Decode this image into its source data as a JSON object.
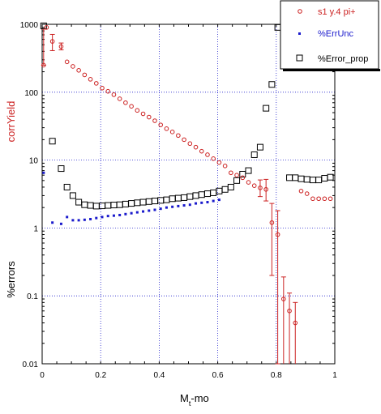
{
  "chart_data": {
    "type": "scatter",
    "title": "",
    "xlabel": "M_t-mo",
    "xlabel_main": "M",
    "xlabel_sub": "t",
    "xlabel_tail": "-mo",
    "ylabel_upper": "corrYield",
    "ylabel_lower": "%errors",
    "xlim": [
      0,
      1
    ],
    "ylim": [
      0.01,
      1000
    ],
    "yscale": "log",
    "grid": true,
    "legend_position": "top-right",
    "x_ticks": [
      "0",
      "0.2",
      "0.4",
      "0.6",
      "0.8",
      "1"
    ],
    "y_ticks": [
      "0.01",
      "0.1",
      "1",
      "10",
      "100",
      "1000"
    ],
    "x_tick_values": [
      0,
      0.2,
      0.4,
      0.6,
      0.8,
      1
    ],
    "y_tick_values": [
      0.01,
      0.1,
      1,
      10,
      100,
      1000
    ],
    "colors": {
      "yield": "#cc2222",
      "errunc": "#1a1acc",
      "errprop": "#000000",
      "grid": "#2222cc",
      "ylabel_upper": "#cc2222"
    },
    "series": [
      {
        "name": "s1 y.4 pi+",
        "marker": "circle",
        "x": [
          0.005,
          0.015,
          0.035,
          0.065,
          0.085,
          0.105,
          0.125,
          0.145,
          0.165,
          0.185,
          0.205,
          0.225,
          0.245,
          0.265,
          0.285,
          0.305,
          0.325,
          0.345,
          0.365,
          0.385,
          0.405,
          0.425,
          0.445,
          0.465,
          0.485,
          0.505,
          0.525,
          0.545,
          0.565,
          0.585,
          0.605,
          0.625,
          0.645,
          0.665,
          0.685,
          0.705,
          0.725,
          0.745,
          0.765,
          0.785,
          0.805,
          0.825,
          0.845,
          0.865,
          0.885,
          0.905,
          0.925,
          0.945,
          0.965,
          0.985
        ],
        "y": [
          250,
          900,
          560,
          470,
          280,
          240,
          210,
          180,
          155,
          135,
          115,
          103,
          92,
          80,
          70,
          62,
          54,
          48,
          43,
          38,
          33,
          29,
          26,
          23,
          20,
          17.5,
          15.5,
          13.5,
          12,
          10.5,
          9.2,
          8.2,
          6.5,
          6,
          5.5,
          4.7,
          4.2,
          3.9,
          3.7,
          1.2,
          0.8,
          0.09,
          0.06,
          0.04,
          3.5,
          3.2,
          2.7,
          2.7,
          2.7,
          2.7
        ],
        "err_low": [
          0.5,
          0,
          150,
          50,
          0,
          0,
          0,
          0,
          0,
          0,
          0,
          0,
          0,
          0,
          0,
          0,
          0,
          0,
          0,
          0,
          0,
          0,
          0,
          0,
          0,
          0,
          0,
          0,
          0,
          0,
          0,
          0,
          0,
          0,
          0,
          0,
          0,
          1.0,
          1.2,
          1.0,
          0.79,
          0.09,
          0.06,
          0.04,
          0,
          0,
          0,
          0,
          0,
          0
        ],
        "err_high": [
          600,
          0,
          150,
          60,
          0,
          0,
          0,
          0,
          0,
          0,
          0,
          0,
          0,
          0,
          0,
          0,
          0,
          0,
          0,
          0,
          0,
          0,
          0,
          0,
          0,
          0,
          0,
          0,
          0,
          0,
          0,
          0,
          0,
          0,
          0,
          0,
          0,
          1.2,
          1.5,
          1.1,
          1.0,
          0.1,
          0.05,
          0.04,
          0,
          0,
          0,
          0,
          0,
          0
        ]
      },
      {
        "name": "%ErrUnc",
        "marker": "square-filled",
        "x": [
          0.005,
          0.035,
          0.065,
          0.085,
          0.105,
          0.125,
          0.145,
          0.165,
          0.185,
          0.205,
          0.225,
          0.245,
          0.265,
          0.285,
          0.305,
          0.325,
          0.345,
          0.365,
          0.385,
          0.405,
          0.425,
          0.445,
          0.465,
          0.485,
          0.505,
          0.525,
          0.545,
          0.565,
          0.585,
          0.605
        ],
        "y": [
          6.5,
          1.2,
          1.15,
          1.45,
          1.3,
          1.3,
          1.32,
          1.35,
          1.4,
          1.45,
          1.5,
          1.52,
          1.55,
          1.6,
          1.65,
          1.7,
          1.75,
          1.8,
          1.85,
          1.92,
          2.0,
          2.05,
          2.1,
          2.15,
          2.2,
          2.3,
          2.35,
          2.4,
          2.5,
          2.6
        ]
      },
      {
        "name": "%Error_prop",
        "marker": "square-open",
        "x": [
          0.005,
          0.035,
          0.065,
          0.085,
          0.105,
          0.125,
          0.145,
          0.165,
          0.185,
          0.205,
          0.225,
          0.245,
          0.265,
          0.285,
          0.305,
          0.325,
          0.345,
          0.365,
          0.385,
          0.405,
          0.425,
          0.445,
          0.465,
          0.485,
          0.505,
          0.525,
          0.545,
          0.565,
          0.585,
          0.605,
          0.625,
          0.645,
          0.665,
          0.685,
          0.705,
          0.725,
          0.745,
          0.765,
          0.785,
          0.805,
          0.825,
          0.845,
          0.865,
          0.885,
          0.905,
          0.925,
          0.945,
          0.965,
          0.985
        ],
        "y": [
          950,
          19,
          7.5,
          4,
          3,
          2.4,
          2.2,
          2.15,
          2.1,
          2.12,
          2.15,
          2.18,
          2.2,
          2.25,
          2.3,
          2.35,
          2.4,
          2.45,
          2.5,
          2.55,
          2.6,
          2.7,
          2.75,
          2.8,
          2.9,
          3.0,
          3.1,
          3.2,
          3.3,
          3.5,
          3.7,
          4.0,
          5.0,
          6.2,
          7.0,
          12,
          15.5,
          58,
          130,
          900,
          380,
          5.5,
          5.5,
          5.3,
          5.2,
          5.1,
          5.1,
          5.4,
          5.6
        ]
      }
    ]
  }
}
